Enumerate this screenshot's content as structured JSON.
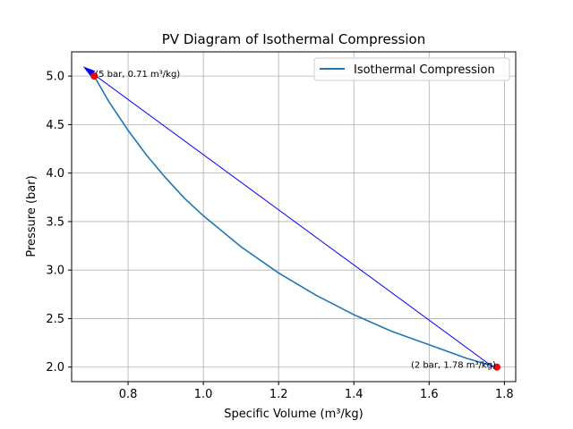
{
  "chart_data": {
    "type": "line",
    "title": "PV Diagram of Isothermal Compression",
    "xlabel": "Specific Volume (m³/kg)",
    "ylabel": "Pressure (bar)",
    "xlim": [
      0.65,
      1.83
    ],
    "ylim": [
      1.85,
      5.25
    ],
    "xticks": [
      0.8,
      1.0,
      1.2,
      1.4,
      1.6,
      1.8
    ],
    "xtick_labels": [
      "0.8",
      "1.0",
      "1.2",
      "1.4",
      "1.6",
      "1.8"
    ],
    "yticks": [
      2.0,
      2.5,
      3.0,
      3.5,
      4.0,
      4.5,
      5.0
    ],
    "ytick_labels": [
      "2.0",
      "2.5",
      "3.0",
      "3.5",
      "4.0",
      "4.5",
      "5.0"
    ],
    "grid": true,
    "legend_position": "top-right",
    "series": [
      {
        "name": "Isothermal Compression",
        "color": "#1f77b4",
        "x": [
          0.71,
          0.75,
          0.8,
          0.85,
          0.9,
          0.95,
          1.0,
          1.1,
          1.2,
          1.3,
          1.4,
          1.5,
          1.6,
          1.7,
          1.78
        ],
        "y": [
          5.0,
          4.73,
          4.44,
          4.18,
          3.95,
          3.74,
          3.56,
          3.24,
          2.97,
          2.74,
          2.54,
          2.37,
          2.23,
          2.09,
          2.0
        ]
      }
    ],
    "arrow": {
      "color": "#0000ff",
      "from": {
        "x": 1.77,
        "y": 2.0
      },
      "to": {
        "x": 0.68,
        "y": 5.1
      }
    },
    "points": [
      {
        "x": 0.71,
        "y": 5.0,
        "color": "#ff0000",
        "label": "(5 bar, 0.71 m³/kg)",
        "label_anchor": "start"
      },
      {
        "x": 1.78,
        "y": 2.0,
        "color": "#ff0000",
        "label": "(2 bar, 1.78 m³/kg)",
        "label_anchor": "end"
      }
    ]
  }
}
